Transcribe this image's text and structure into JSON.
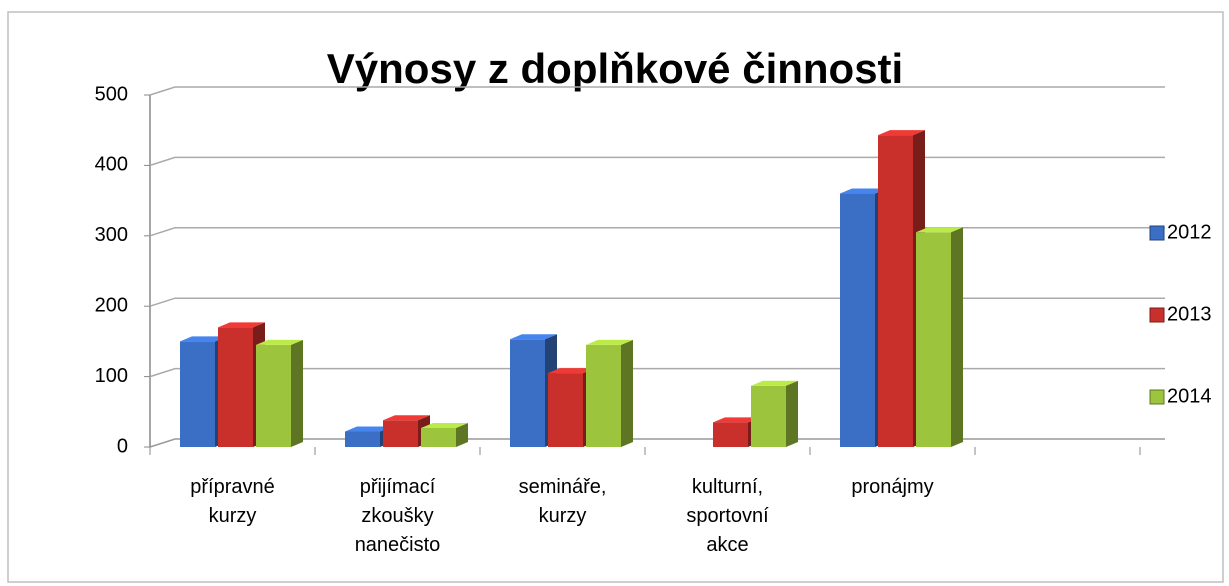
{
  "chart_data": {
    "type": "bar3d",
    "title": "Výnosy z doplňkové činnosti",
    "categories": [
      "přípravné kurzy",
      "přijímací zkoušky nanečisto",
      "semináře, kurzy",
      "kulturní, sportovní akce",
      "pronájmy",
      null
    ],
    "series": [
      {
        "name": "2012",
        "color": "#3b6fc6",
        "values": [
          150,
          22,
          153,
          null,
          360,
          null
        ]
      },
      {
        "name": "2013",
        "color": "#c9302c",
        "values": [
          170,
          38,
          105,
          35,
          443,
          null
        ]
      },
      {
        "name": "2014",
        "color": "#9cc43c",
        "values": [
          145,
          27,
          145,
          87,
          305,
          null
        ]
      }
    ],
    "ylim": [
      0,
      500
    ],
    "yticks": [
      0,
      100,
      200,
      300,
      400,
      500
    ],
    "grid": true,
    "legend": "right"
  }
}
